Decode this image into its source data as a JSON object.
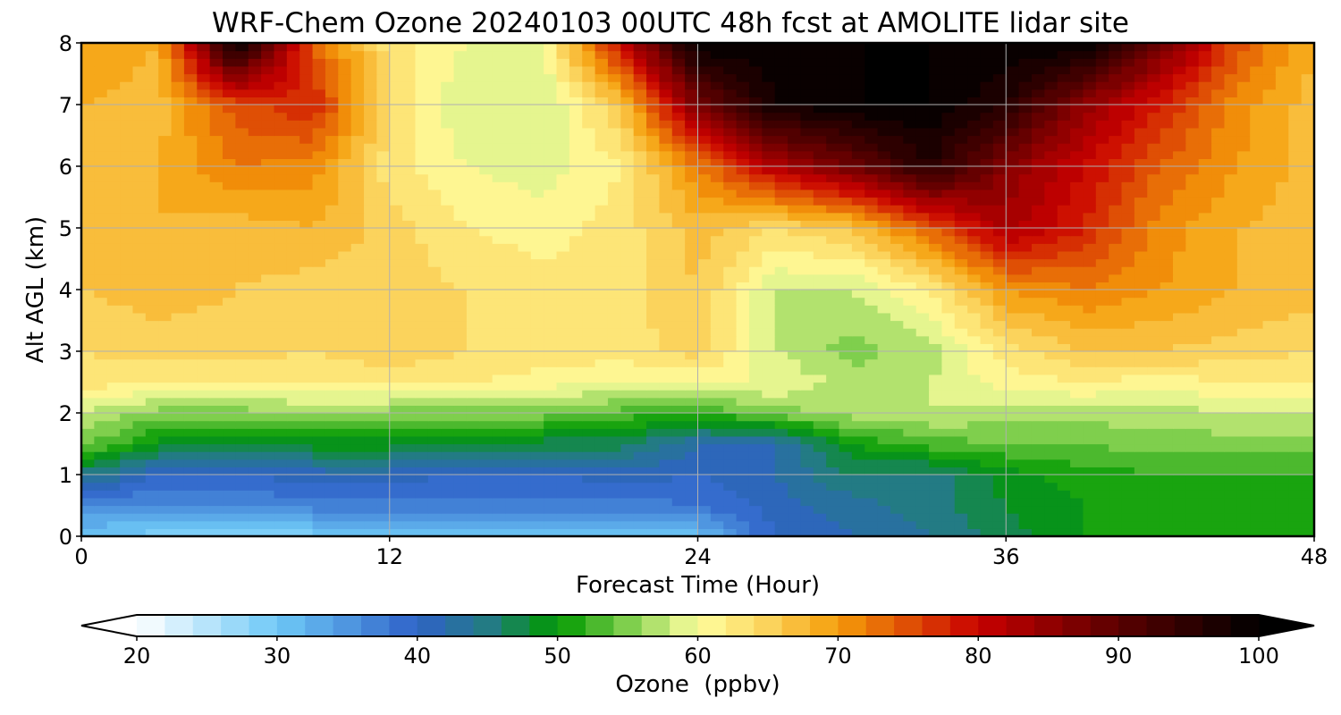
{
  "chart_data": {
    "type": "heatmap",
    "title": "WRF-Chem Ozone  20240103 00UTC 48h fcst at AMOLITE lidar site",
    "xlabel": "Forecast Time (Hour)",
    "ylabel": "Alt AGL (km)",
    "xlim": [
      0,
      48
    ],
    "ylim": [
      0,
      8
    ],
    "x_ticks": [
      0,
      12,
      24,
      36,
      48
    ],
    "y_ticks": [
      0,
      1,
      2,
      3,
      4,
      5,
      6,
      7,
      8
    ],
    "grid": true,
    "x": [
      0,
      3,
      6,
      9,
      12,
      15,
      18,
      21,
      24,
      27,
      30,
      33,
      36,
      39,
      42,
      45,
      48
    ],
    "y": [
      0,
      0.5,
      1,
      1.5,
      2,
      2.5,
      3,
      4,
      5,
      6,
      7,
      8
    ],
    "z": [
      [
        30,
        29,
        28,
        29,
        31,
        31,
        30,
        30,
        31,
        40,
        42,
        44,
        47,
        50,
        50,
        50,
        50
      ],
      [
        36,
        36,
        36,
        37,
        37,
        37,
        37,
        37,
        38,
        41,
        43,
        45,
        48,
        50,
        51,
        51,
        51
      ],
      [
        45,
        40,
        40,
        41,
        41,
        40,
        40,
        41,
        40,
        42,
        46,
        45,
        49,
        51,
        52,
        52,
        52
      ],
      [
        55,
        49,
        49,
        49,
        49,
        48,
        47,
        47,
        42,
        42,
        50,
        53,
        54,
        54,
        55,
        55,
        55
      ],
      [
        58,
        55,
        55,
        56,
        55,
        55,
        55,
        53,
        52,
        55,
        57,
        58,
        57,
        57,
        57,
        58,
        58
      ],
      [
        63,
        62,
        62,
        62,
        63,
        62,
        61,
        60,
        60,
        60,
        57,
        58,
        61,
        62,
        61,
        62,
        62
      ],
      [
        64,
        65,
        65,
        64,
        65,
        64,
        63,
        63,
        65,
        58,
        55,
        57,
        63,
        66,
        66,
        65,
        64
      ],
      [
        66,
        67,
        66,
        65,
        65,
        64,
        63,
        63,
        66,
        58,
        58,
        62,
        70,
        72,
        70,
        68,
        67
      ],
      [
        66,
        68,
        67,
        68,
        65,
        62,
        61,
        63,
        67,
        64,
        66,
        74,
        83,
        78,
        71,
        68,
        67
      ],
      [
        67,
        68,
        72,
        71,
        63,
        60,
        59,
        62,
        72,
        82,
        88,
        96,
        86,
        80,
        74,
        70,
        67
      ],
      [
        68,
        67,
        75,
        78,
        64,
        58,
        58,
        66,
        87,
        98,
        100,
        100,
        96,
        85,
        78,
        71,
        67
      ],
      [
        70,
        68,
        100,
        74,
        63,
        60,
        60,
        80,
        100,
        100,
        100,
        100,
        100,
        100,
        88,
        75,
        68
      ]
    ],
    "colorbar": {
      "label": "Ozone  (ppbv)",
      "min": 20,
      "max": 100,
      "ticks": [
        20,
        30,
        40,
        50,
        60,
        70,
        80,
        90,
        100
      ],
      "extend": "both"
    },
    "colormap_stops": [
      {
        "v": 20,
        "c": "#ffffff"
      },
      {
        "v": 30,
        "c": "#6ec9f7"
      },
      {
        "v": 40,
        "c": "#2f62c8"
      },
      {
        "v": 45,
        "c": "#237b84"
      },
      {
        "v": 50,
        "c": "#009900"
      },
      {
        "v": 55,
        "c": "#7fcf4d"
      },
      {
        "v": 60,
        "c": "#ffffa0"
      },
      {
        "v": 65,
        "c": "#fbd35c"
      },
      {
        "v": 70,
        "c": "#f59d0a"
      },
      {
        "v": 80,
        "c": "#c80000"
      },
      {
        "v": 90,
        "c": "#5a0000"
      },
      {
        "v": 100,
        "c": "#000000"
      }
    ]
  }
}
